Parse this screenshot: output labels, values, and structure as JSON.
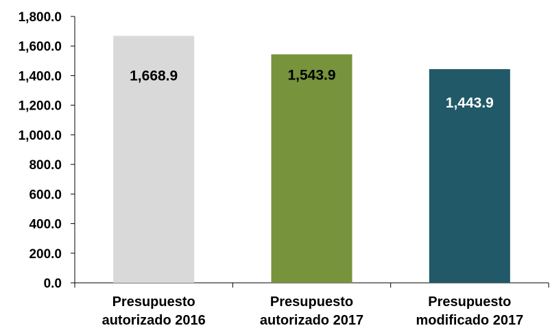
{
  "chart_data": {
    "type": "bar",
    "categories": [
      [
        "Presupuesto",
        "autorizado 2016"
      ],
      [
        "Presupuesto",
        "autorizado 2017"
      ],
      [
        "Presupuesto",
        "modificado 2017"
      ]
    ],
    "values": [
      1668.9,
      1543.9,
      1443.9
    ],
    "value_labels": [
      "1,668.9",
      "1,543.9",
      "1,443.9"
    ],
    "bar_colors": [
      "#d9d9d9",
      "#77933c",
      "#215968"
    ],
    "label_colors": [
      "#000000",
      "#000000",
      "#ffffff"
    ],
    "yticks": [
      0,
      200,
      400,
      600,
      800,
      1000,
      1200,
      1400,
      1600,
      1800
    ],
    "ytick_labels": [
      "0.0",
      "200.0",
      "400.0",
      "600.0",
      "800.0",
      "1,000.0",
      "1,200.0",
      "1,400.0",
      "1,600.0",
      "1,800.0"
    ],
    "ylim": [
      0,
      1800
    ],
    "grid": false,
    "legend": "none"
  }
}
